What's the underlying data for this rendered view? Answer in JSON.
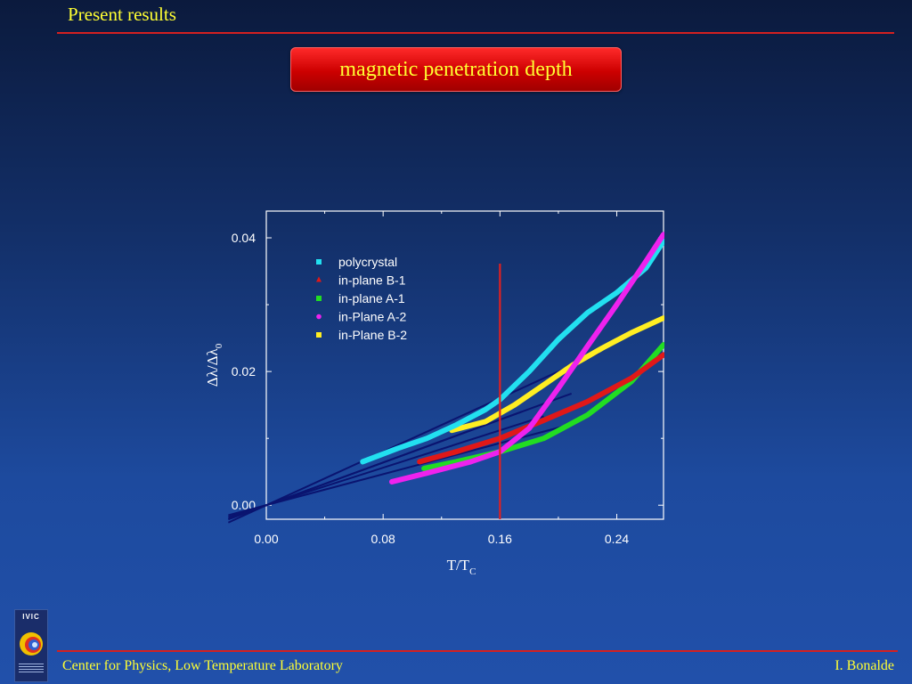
{
  "header": {
    "title": "Present results"
  },
  "slide": {
    "title": "magnetic penetration depth"
  },
  "footer": {
    "left": "Center for Physics, Low Temperature Laboratory",
    "right": "I. Bonalde"
  },
  "logo": {
    "text": "IVIC",
    "icon": "ivic-logo-icon"
  },
  "colors": {
    "accent_text": "#ffff33",
    "rule": "#d42020",
    "title_box": "#cc0000",
    "fit_lines": "#0a1470",
    "marker_line": "#e02020"
  },
  "chart_data": {
    "type": "scatter",
    "xlabel": "T/T",
    "xlabel_sub": "C",
    "ylabel": "Δλ/Δλ",
    "ylabel_sub": "0",
    "xlim": [
      0,
      0.272
    ],
    "ylim": [
      -0.0021,
      0.044
    ],
    "xticks": [
      0,
      0.08,
      0.16,
      0.24
    ],
    "xtick_labels": [
      "0.00",
      "0.08",
      "0.16",
      "0.24"
    ],
    "yticks": [
      0,
      0.02,
      0.04
    ],
    "ytick_labels": [
      "0.00",
      "0.02",
      "0.04"
    ],
    "legend_position": "top-left",
    "vertical_line_x": 0.16,
    "series": [
      {
        "name": "polycrystal",
        "color": "#22e0f0",
        "marker": "square",
        "x": [
          0.066,
          0.09,
          0.11,
          0.13,
          0.15,
          0.16,
          0.18,
          0.2,
          0.22,
          0.24,
          0.26,
          0.272
        ],
        "y": [
          0.0065,
          0.0085,
          0.01,
          0.012,
          0.0143,
          0.0158,
          0.02,
          0.0248,
          0.0288,
          0.0318,
          0.0355,
          0.0395
        ]
      },
      {
        "name": "in-plane B-1",
        "color": "#e01818",
        "marker": "triangle",
        "x": [
          0.105,
          0.13,
          0.16,
          0.19,
          0.22,
          0.25,
          0.272
        ],
        "y": [
          0.0065,
          0.008,
          0.01,
          0.0127,
          0.0155,
          0.019,
          0.0225
        ]
      },
      {
        "name": "in-plane A-1",
        "color": "#22dd22",
        "marker": "square",
        "x": [
          0.108,
          0.13,
          0.16,
          0.19,
          0.22,
          0.25,
          0.272
        ],
        "y": [
          0.0055,
          0.0065,
          0.008,
          0.01,
          0.0135,
          0.0185,
          0.024
        ]
      },
      {
        "name": "in-Plane A-2",
        "color": "#ee22ee",
        "marker": "circle",
        "x": [
          0.086,
          0.11,
          0.14,
          0.16,
          0.18,
          0.2,
          0.22,
          0.24,
          0.26,
          0.272
        ],
        "y": [
          0.0035,
          0.0048,
          0.0065,
          0.008,
          0.0115,
          0.0175,
          0.0238,
          0.03,
          0.0365,
          0.0405
        ]
      },
      {
        "name": "in-Plane B-2",
        "color": "#ffee22",
        "marker": "square",
        "x": [
          0.127,
          0.15,
          0.17,
          0.19,
          0.21,
          0.23,
          0.25,
          0.272
        ],
        "y": [
          0.0112,
          0.0125,
          0.015,
          0.018,
          0.021,
          0.0235,
          0.0258,
          0.028
        ]
      }
    ],
    "fit_lines": [
      {
        "x": [
          -0.026,
          0.228
        ],
        "y": [
          -0.0026,
          0.0228
        ]
      },
      {
        "x": [
          -0.026,
          0.209
        ],
        "y": [
          -0.0021,
          0.0167
        ]
      },
      {
        "x": [
          -0.026,
          0.19
        ],
        "y": [
          -0.0018,
          0.0133
        ]
      },
      {
        "x": [
          -0.026,
          0.207
        ],
        "y": [
          -0.0015,
          0.012
        ]
      },
      {
        "x": [
          -0.026,
          0.175
        ],
        "y": [
          -0.0021,
          0.014
        ]
      }
    ]
  }
}
